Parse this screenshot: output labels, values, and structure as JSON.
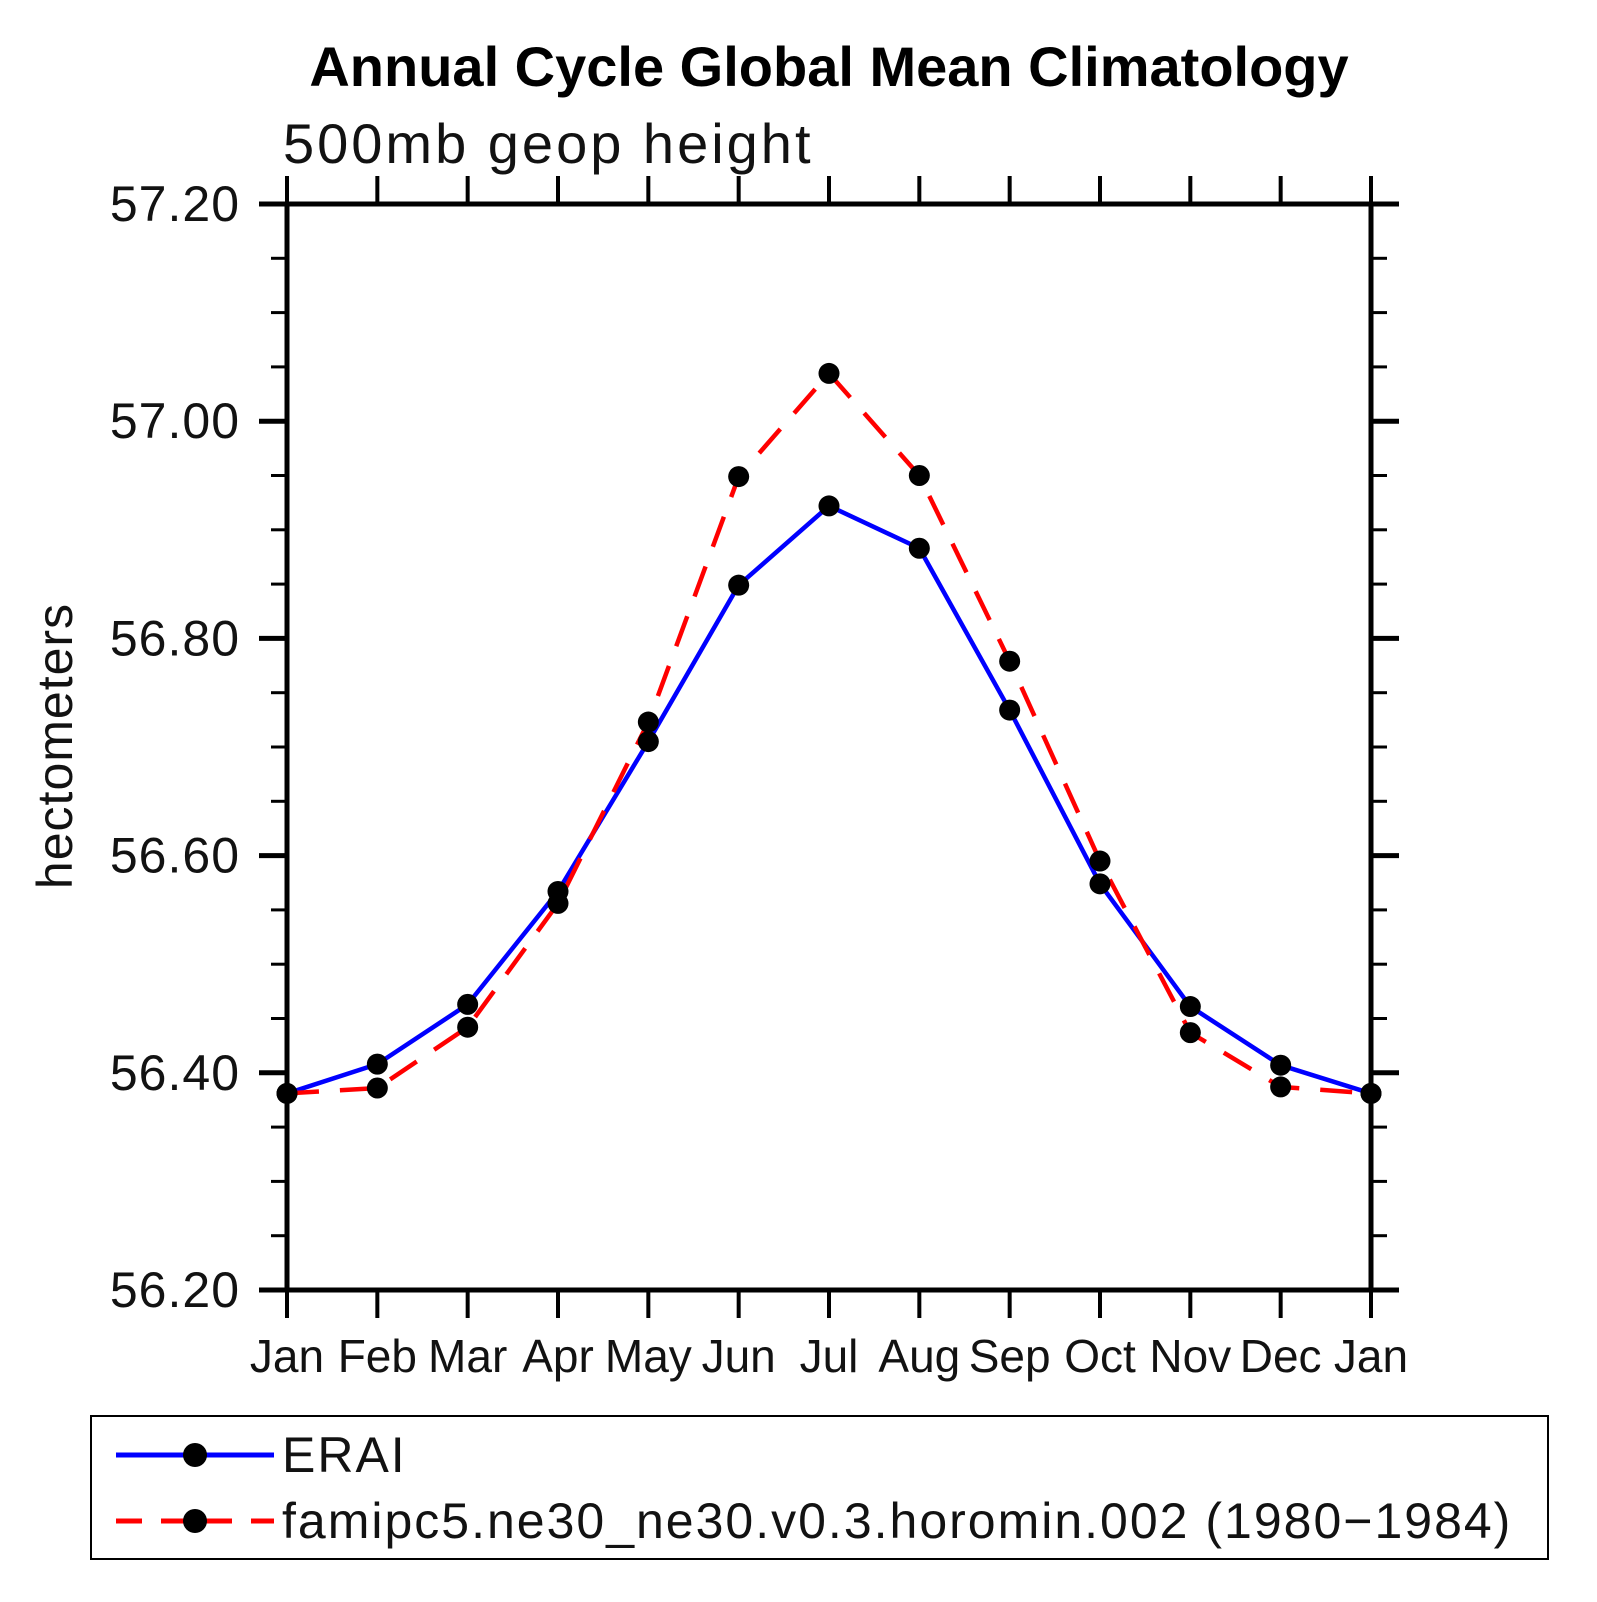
{
  "chart_data": {
    "type": "line",
    "title": "Annual Cycle Global Mean Climatology",
    "subtitle": "500mb geop height",
    "xlabel": "",
    "ylabel": "hectometers",
    "categories": [
      "Jan",
      "Feb",
      "Mar",
      "Apr",
      "May",
      "Jun",
      "Jul",
      "Aug",
      "Sep",
      "Oct",
      "Nov",
      "Dec",
      "Jan"
    ],
    "ylim": [
      56.2,
      57.2
    ],
    "ytick_major": 0.2,
    "ytick_minor": 0.05,
    "ytick_labels": [
      "56.20",
      "56.40",
      "56.60",
      "56.80",
      "57.00",
      "57.20"
    ],
    "grid": false,
    "legend_position": "bottom-left-box",
    "axis_color": "#000000",
    "marker_color": "#000000",
    "series": [
      {
        "name": "ERAI",
        "color": "#0000ff",
        "style": "solid",
        "marker": "circle",
        "values": [
          56.381,
          56.408,
          56.463,
          56.567,
          56.705,
          56.849,
          56.922,
          56.883,
          56.734,
          56.574,
          56.461,
          56.407,
          56.381
        ]
      },
      {
        "name": "famipc5.ne30_ne30.v0.3.horomin.002 (1980−1984)",
        "color": "#ff0000",
        "style": "dashed",
        "marker": "circle",
        "values": [
          56.381,
          56.386,
          56.442,
          56.556,
          56.723,
          56.949,
          57.044,
          56.95,
          56.779,
          56.595,
          56.437,
          56.387,
          56.381
        ]
      }
    ]
  }
}
